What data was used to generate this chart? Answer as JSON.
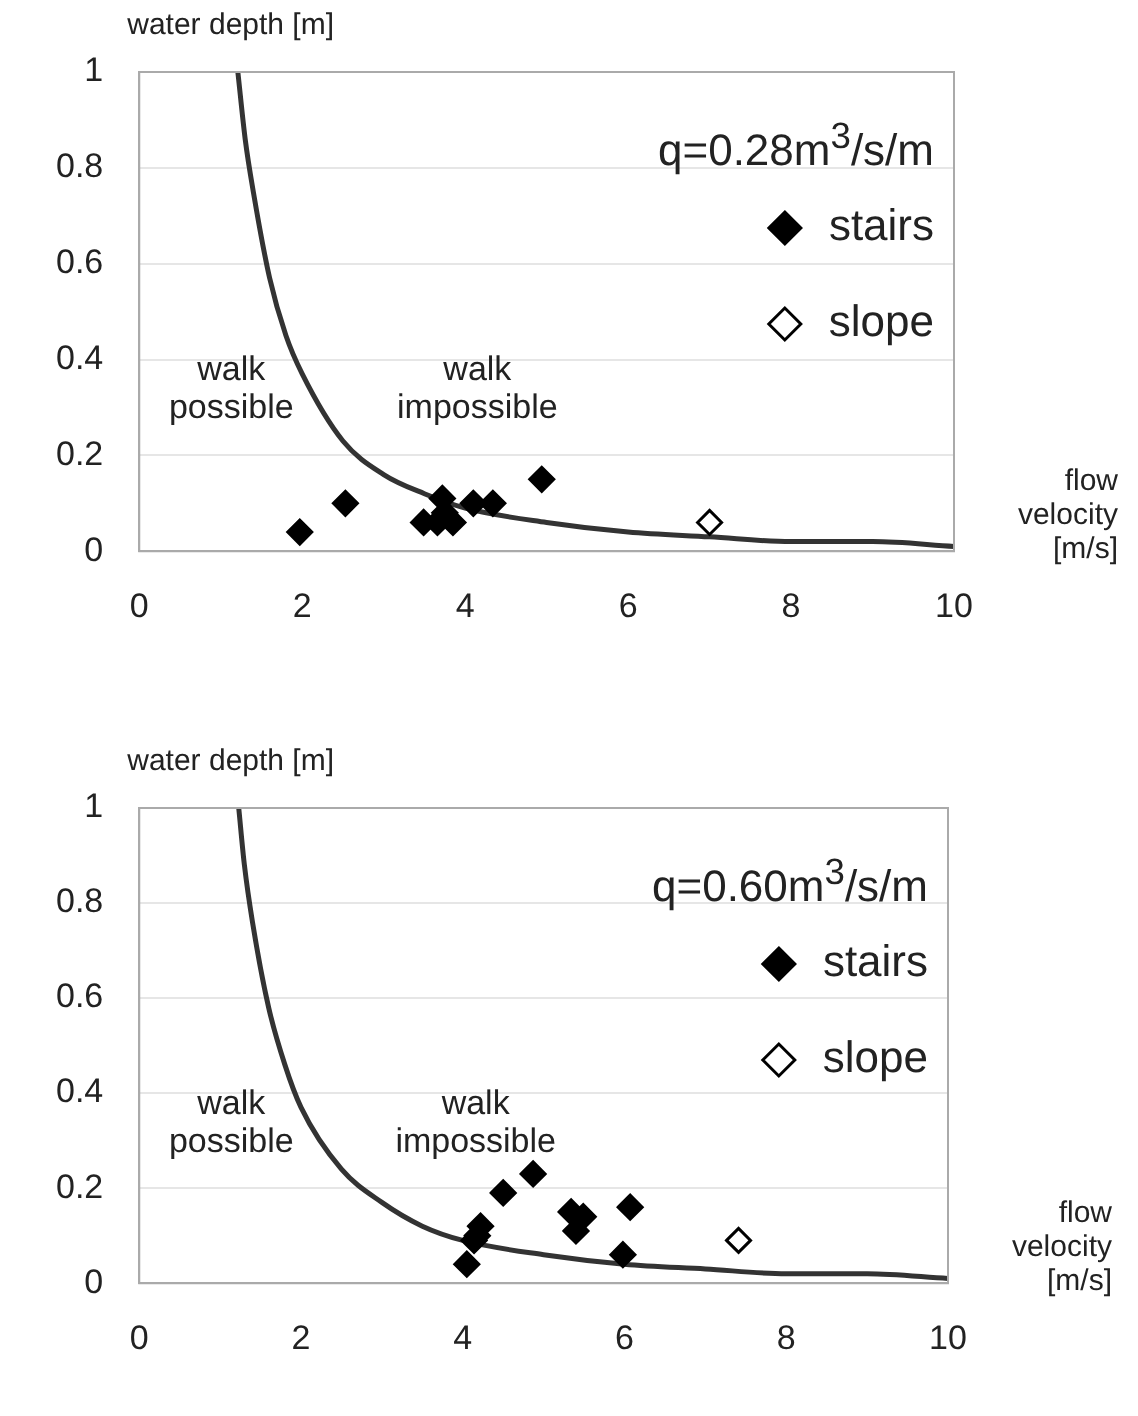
{
  "chart_data": [
    {
      "type": "scatter",
      "ylabel": "water depth [m]",
      "xlabel": "flow velocity [m/s]",
      "xlim": [
        0,
        10
      ],
      "ylim": [
        0,
        1
      ],
      "xticks": [
        0,
        2,
        4,
        6,
        8,
        10
      ],
      "yticks": [
        0,
        0.2,
        0.4,
        0.6,
        0.8,
        1
      ],
      "grid": "y",
      "legend": "top right",
      "marker": "diamond",
      "annotations": [
        "q=0.28m$^{3}$/s/m",
        "walk possible",
        "walk impossible"
      ],
      "series": [
        {
          "type": "line",
          "color": "#333333",
          "marker": "none",
          "x": [
            1.21,
            1.3,
            1.4,
            1.6,
            1.8,
            2,
            2.5,
            3,
            3.5,
            4,
            5,
            6,
            7,
            8,
            9,
            10
          ],
          "values": [
            1,
            0.86,
            0.75,
            0.57,
            0.45,
            0.37,
            0.23,
            0.16,
            0.12,
            0.09,
            0.06,
            0.04,
            0.03,
            0.02,
            0.02,
            0.01
          ]
        },
        {
          "name": "stairs",
          "color": "#000000",
          "x": [
            1.97,
            2.53,
            3.49,
            3.66,
            3.72,
            3.75,
            3.85,
            4.1,
            4.34,
            4.94
          ],
          "values": [
            0.04,
            0.1,
            0.06,
            0.06,
            0.11,
            0.08,
            0.06,
            0.1,
            0.1,
            0.15
          ]
        },
        {
          "name": "slope",
          "color": "#ffffff",
          "x": [
            7.0
          ],
          "values": [
            0.06
          ]
        }
      ]
    },
    {
      "type": "scatter",
      "ylabel": "water depth [m]",
      "xlabel": "flow velocity [m/s]",
      "xlim": [
        0,
        10
      ],
      "ylim": [
        0,
        1
      ],
      "xticks": [
        0,
        2,
        4,
        6,
        8,
        10
      ],
      "yticks": [
        0,
        0.2,
        0.4,
        0.6,
        0.8,
        1
      ],
      "grid": "y",
      "legend": "top right",
      "marker": "diamond",
      "annotations": [
        "q=0.60m$^{3}$/s/m",
        "walk possible",
        "walk impossible"
      ],
      "series": [
        {
          "type": "line",
          "color": "#333333",
          "marker": "none",
          "x": [
            1.23,
            1.3,
            1.4,
            1.6,
            1.8,
            2,
            2.5,
            3,
            3.5,
            4,
            5,
            6,
            7,
            8,
            9,
            10
          ],
          "values": [
            1,
            0.88,
            0.76,
            0.58,
            0.46,
            0.37,
            0.24,
            0.17,
            0.12,
            0.09,
            0.06,
            0.04,
            0.03,
            0.02,
            0.02,
            0.01
          ]
        },
        {
          "name": "stairs",
          "color": "#000000",
          "x": [
            4.05,
            4.14,
            4.18,
            4.22,
            4.5,
            4.87,
            5.34,
            5.4,
            5.49,
            5.98,
            6.07
          ],
          "values": [
            0.04,
            0.09,
            0.1,
            0.12,
            0.19,
            0.23,
            0.15,
            0.11,
            0.14,
            0.06,
            0.16
          ]
        },
        {
          "name": "slope",
          "color": "#ffffff",
          "x": [
            7.41
          ],
          "values": [
            0.09
          ]
        }
      ]
    }
  ]
}
